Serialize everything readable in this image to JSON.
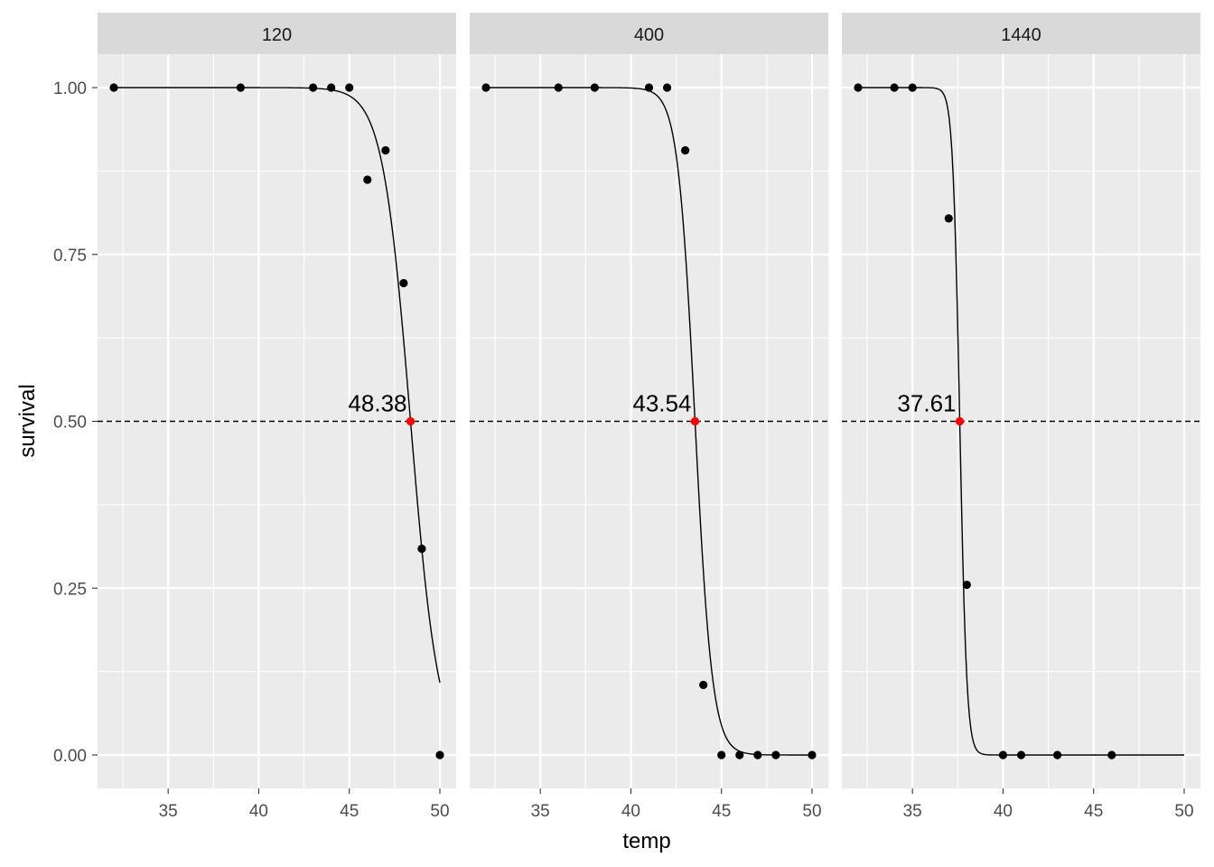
{
  "chart_data": {
    "type": "scatter",
    "xlabel": "temp",
    "ylabel": "survival",
    "xlim": [
      31.1,
      50.9
    ],
    "ylim": [
      -0.05,
      1.05
    ],
    "x_ticks": [
      35,
      40,
      45,
      50
    ],
    "y_ticks": [
      0,
      0.25,
      0.5,
      0.75,
      1.0
    ],
    "y_tick_labels": [
      "0.00",
      "0.25",
      "0.50",
      "0.75",
      "1.00"
    ],
    "reference_line": {
      "y": 0.5,
      "style": "dashed"
    },
    "grid": true,
    "colors": {
      "panel_bg": "#ebebeb",
      "strip_bg": "#d9d9d9",
      "grid": "#ffffff",
      "point": "#000000",
      "highlight": "#ff0000"
    },
    "panels": [
      {
        "label": "120",
        "points": [
          {
            "x": 32,
            "y": 1.0
          },
          {
            "x": 39,
            "y": 1.0
          },
          {
            "x": 43,
            "y": 1.0
          },
          {
            "x": 44,
            "y": 1.0
          },
          {
            "x": 45,
            "y": 1.0
          },
          {
            "x": 46,
            "y": 0.862
          },
          {
            "x": 47,
            "y": 0.906
          },
          {
            "x": 48,
            "y": 0.707
          },
          {
            "x": 49,
            "y": 0.309
          },
          {
            "x": 50,
            "y": 0.0
          }
        ],
        "curve": {
          "x50": 48.38,
          "slope": 1.3,
          "x_start": 32,
          "x_end": 50
        },
        "ld50": {
          "x": 48.38,
          "y": 0.5,
          "label": "48.38"
        }
      },
      {
        "label": "400",
        "points": [
          {
            "x": 32,
            "y": 1.0
          },
          {
            "x": 36,
            "y": 1.0
          },
          {
            "x": 38,
            "y": 1.0
          },
          {
            "x": 41,
            "y": 1.0
          },
          {
            "x": 42,
            "y": 1.0
          },
          {
            "x": 43,
            "y": 0.906
          },
          {
            "x": 44,
            "y": 0.105
          },
          {
            "x": 45,
            "y": 0.0
          },
          {
            "x": 46,
            "y": 0.0
          },
          {
            "x": 47,
            "y": 0.0
          },
          {
            "x": 48,
            "y": 0.0
          },
          {
            "x": 50,
            "y": 0.0
          }
        ],
        "curve": {
          "x50": 43.54,
          "slope": 2.1,
          "x_start": 32,
          "x_end": 50
        },
        "ld50": {
          "x": 43.54,
          "y": 0.5,
          "label": "43.54"
        }
      },
      {
        "label": "1440",
        "points": [
          {
            "x": 32,
            "y": 1.0
          },
          {
            "x": 34,
            "y": 1.0
          },
          {
            "x": 35,
            "y": 1.0
          },
          {
            "x": 37,
            "y": 0.804
          },
          {
            "x": 38,
            "y": 0.255
          },
          {
            "x": 40,
            "y": 0.0
          },
          {
            "x": 41,
            "y": 0.0
          },
          {
            "x": 43,
            "y": 0.0
          },
          {
            "x": 46,
            "y": 0.0
          }
        ],
        "curve": {
          "x50": 37.61,
          "slope": 5.2,
          "x_start": 32,
          "x_end": 50
        },
        "ld50": {
          "x": 37.61,
          "y": 0.5,
          "label": "37.61"
        }
      }
    ]
  }
}
